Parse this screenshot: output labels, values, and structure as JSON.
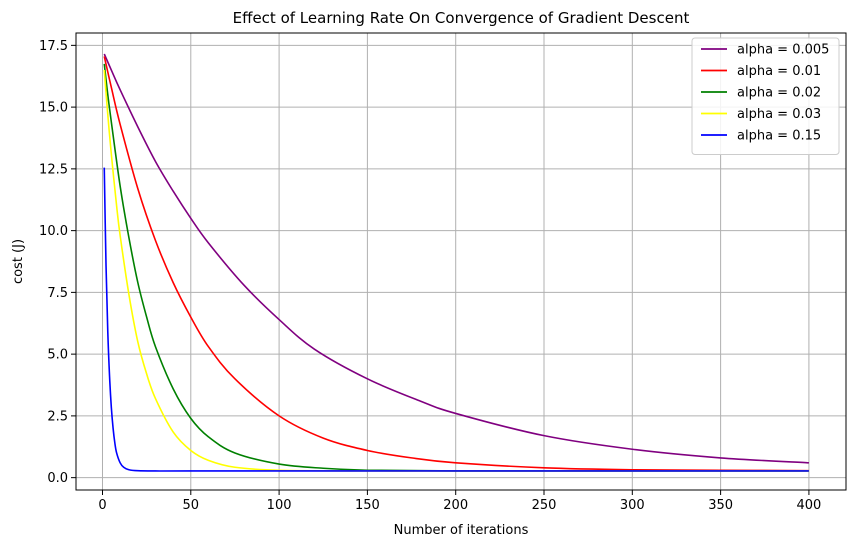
{
  "chart_data": {
    "type": "line",
    "title": "Effect of Learning Rate On Convergence of Gradient Descent",
    "xlabel": "Number of iterations",
    "ylabel": "cost (J)",
    "xlim": [
      -15,
      421
    ],
    "ylim": [
      -0.5,
      18.0
    ],
    "xticks": [
      0,
      50,
      100,
      150,
      200,
      250,
      300,
      350,
      400
    ],
    "yticks": [
      0.0,
      2.5,
      5.0,
      7.5,
      10.0,
      12.5,
      15.0,
      17.5
    ],
    "ytick_labels": [
      "0.0",
      "2.5",
      "5.0",
      "7.5",
      "10.0",
      "12.5",
      "15.0",
      "17.5"
    ],
    "grid": true,
    "legend_position": "top-right",
    "series": [
      {
        "name": "alpha = 0.005",
        "color": "#800080",
        "x": [
          1,
          5,
          10,
          20,
          30,
          40,
          50,
          60,
          80,
          100,
          120,
          150,
          180,
          200,
          250,
          300,
          350,
          400
        ],
        "y": [
          17.15,
          16.5,
          15.7,
          14.2,
          12.8,
          11.6,
          10.5,
          9.5,
          7.8,
          6.4,
          5.2,
          4.0,
          3.1,
          2.6,
          1.7,
          1.15,
          0.8,
          0.6
        ]
      },
      {
        "name": "alpha = 0.01",
        "color": "#ff0000",
        "x": [
          1,
          5,
          10,
          20,
          30,
          40,
          50,
          60,
          75,
          100,
          125,
          150,
          175,
          200,
          250,
          300,
          350,
          400
        ],
        "y": [
          17.05,
          15.8,
          14.3,
          11.7,
          9.6,
          7.9,
          6.5,
          5.3,
          4.0,
          2.5,
          1.6,
          1.1,
          0.8,
          0.6,
          0.4,
          0.32,
          0.3,
          0.28
        ]
      },
      {
        "name": "alpha = 0.02",
        "color": "#008000",
        "x": [
          1,
          3,
          5,
          10,
          15,
          20,
          25,
          30,
          40,
          50,
          60,
          75,
          100,
          125,
          150,
          200,
          300,
          400
        ],
        "y": [
          16.75,
          15.5,
          14.4,
          11.8,
          9.7,
          7.9,
          6.5,
          5.3,
          3.6,
          2.4,
          1.65,
          1.0,
          0.55,
          0.38,
          0.3,
          0.27,
          0.27,
          0.27
        ]
      },
      {
        "name": "alpha = 0.03",
        "color": "#ffff00",
        "x": [
          1,
          3,
          5,
          8,
          10,
          15,
          20,
          25,
          30,
          40,
          50,
          60,
          75,
          100,
          150,
          200,
          300,
          400
        ],
        "y": [
          16.5,
          14.7,
          13.1,
          11.0,
          9.8,
          7.4,
          5.5,
          4.2,
          3.2,
          1.85,
          1.1,
          0.7,
          0.42,
          0.3,
          0.27,
          0.27,
          0.27,
          0.27
        ]
      },
      {
        "name": "alpha = 0.15",
        "color": "#0000ff",
        "x": [
          1,
          2,
          3,
          4,
          5,
          6,
          7,
          8,
          10,
          12,
          15,
          20,
          30,
          50,
          100,
          200,
          300,
          400
        ],
        "y": [
          12.55,
          8.6,
          5.9,
          4.1,
          2.85,
          2.0,
          1.4,
          1.0,
          0.6,
          0.42,
          0.32,
          0.28,
          0.27,
          0.27,
          0.27,
          0.27,
          0.27,
          0.27
        ]
      }
    ]
  }
}
